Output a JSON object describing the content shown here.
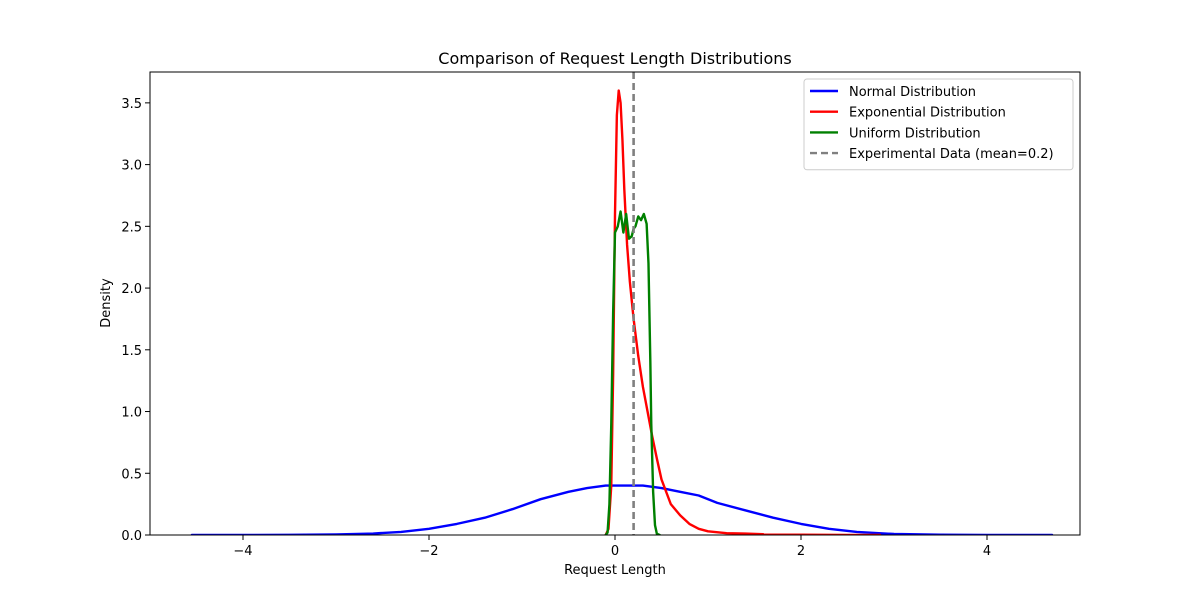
{
  "chart_data": {
    "type": "line",
    "title": "Comparison of Request Length Distributions",
    "xlabel": "Request Length",
    "ylabel": "Density",
    "xlim": [
      -5.0,
      5.0
    ],
    "ylim": [
      0,
      3.75
    ],
    "xticks": [
      {
        "value": -4,
        "label": "−4"
      },
      {
        "value": -2,
        "label": "−2"
      },
      {
        "value": 0,
        "label": "0"
      },
      {
        "value": 2,
        "label": "2"
      },
      {
        "value": 4,
        "label": "4"
      }
    ],
    "yticks": [
      {
        "value": 0.0,
        "label": "0.0"
      },
      {
        "value": 0.5,
        "label": "0.5"
      },
      {
        "value": 1.0,
        "label": "1.0"
      },
      {
        "value": 1.5,
        "label": "1.5"
      },
      {
        "value": 2.0,
        "label": "2.0"
      },
      {
        "value": 2.5,
        "label": "2.5"
      },
      {
        "value": 3.0,
        "label": "3.0"
      },
      {
        "value": 3.5,
        "label": "3.5"
      }
    ],
    "grid": false,
    "legend_position": "top-right",
    "series": [
      {
        "name": "Normal Distribution",
        "color": "#0000ff",
        "x": [
          -4.55,
          -4.0,
          -3.5,
          -3.0,
          -2.6,
          -2.3,
          -2.0,
          -1.7,
          -1.4,
          -1.1,
          -0.8,
          -0.5,
          -0.3,
          -0.1,
          0.1,
          0.3,
          0.5,
          0.7,
          0.9,
          1.1,
          1.4,
          1.7,
          2.0,
          2.3,
          2.6,
          3.0,
          3.5,
          4.0,
          4.7
        ],
        "y": [
          0.0,
          0.0,
          0.001,
          0.004,
          0.012,
          0.025,
          0.05,
          0.09,
          0.14,
          0.21,
          0.29,
          0.35,
          0.38,
          0.4,
          0.4,
          0.4,
          0.38,
          0.35,
          0.32,
          0.26,
          0.2,
          0.14,
          0.09,
          0.05,
          0.025,
          0.008,
          0.002,
          0.0,
          0.0
        ]
      },
      {
        "name": "Exponential Distribution",
        "color": "#ff0000",
        "x": [
          -0.1,
          -0.07,
          -0.04,
          -0.02,
          0.0,
          0.02,
          0.04,
          0.06,
          0.08,
          0.1,
          0.13,
          0.16,
          0.2,
          0.25,
          0.3,
          0.35,
          0.4,
          0.45,
          0.5,
          0.6,
          0.7,
          0.8,
          0.9,
          1.0,
          1.2,
          1.4,
          1.6,
          2.0,
          2.5,
          2.85
        ],
        "y": [
          0.0,
          0.05,
          0.4,
          1.3,
          2.6,
          3.4,
          3.6,
          3.5,
          3.2,
          2.8,
          2.35,
          2.05,
          1.75,
          1.45,
          1.2,
          1.0,
          0.8,
          0.62,
          0.45,
          0.25,
          0.16,
          0.09,
          0.05,
          0.03,
          0.015,
          0.012,
          0.006,
          0.002,
          0.0,
          0.0
        ]
      },
      {
        "name": "Uniform Distribution",
        "color": "#008000",
        "x": [
          -0.1,
          -0.08,
          -0.06,
          -0.04,
          -0.02,
          0.0,
          0.03,
          0.06,
          0.09,
          0.12,
          0.15,
          0.18,
          0.2,
          0.22,
          0.25,
          0.28,
          0.31,
          0.34,
          0.36,
          0.38,
          0.39,
          0.41,
          0.43,
          0.45,
          0.48
        ],
        "y": [
          0.0,
          0.02,
          0.25,
          0.9,
          1.8,
          2.45,
          2.5,
          2.62,
          2.45,
          2.6,
          2.4,
          2.42,
          2.48,
          2.5,
          2.58,
          2.55,
          2.6,
          2.52,
          2.2,
          1.4,
          0.9,
          0.35,
          0.08,
          0.01,
          0.0
        ]
      }
    ],
    "reference_lines": [
      {
        "name": "Experimental Data (mean=0.2)",
        "x": 0.2,
        "color": "#808080",
        "style": "dashed"
      }
    ]
  }
}
